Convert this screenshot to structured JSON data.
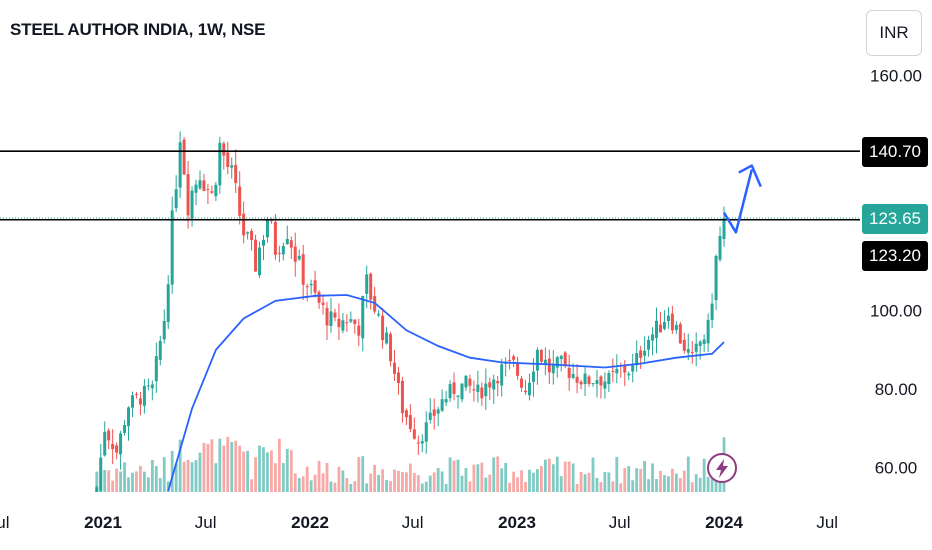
{
  "header": {
    "title": "STEEL AUTHOR INDIA, 1W, NSE",
    "currency": "INR"
  },
  "chart_data": {
    "type": "candlestick",
    "title": "STEEL AUTHOR INDIA, 1W, NSE",
    "currency": "INR",
    "y_ticks": [
      60,
      80,
      100,
      160
    ],
    "y_tick_labels": [
      "60.00",
      "80.00",
      "100.00",
      "160.00"
    ],
    "ylim": [
      54,
      163
    ],
    "x_tick_labels": [
      "Jul",
      "2021",
      "Jul",
      "2022",
      "Jul",
      "2023",
      "Jul",
      "2024",
      "Jul"
    ],
    "x_tick_dates": [
      "2020-07",
      "2021-01",
      "2021-07",
      "2022-01",
      "2022-07",
      "2023-01",
      "2023-07",
      "2024-01",
      "2024-07"
    ],
    "xlim": [
      "2020-07",
      "2024-08"
    ],
    "horizontal_lines": [
      {
        "value": 140.7,
        "label": "140.70",
        "color": "#000000"
      },
      {
        "value": 123.2,
        "label": "123.20",
        "color": "#000000"
      }
    ],
    "last_price": {
      "value": 123.65,
      "label": "123.65",
      "color": "#26a69a"
    },
    "close_path": [
      [
        "2020-12-21",
        55
      ],
      [
        "2021-01-04",
        70
      ],
      [
        "2021-01-25",
        64
      ],
      [
        "2021-02-15",
        76
      ],
      [
        "2021-03-08",
        78
      ],
      [
        "2021-03-29",
        80
      ],
      [
        "2021-04-19",
        98
      ],
      [
        "2021-05-03",
        122
      ],
      [
        "2021-05-17",
        146
      ],
      [
        "2021-05-31",
        128
      ],
      [
        "2021-06-21",
        136
      ],
      [
        "2021-07-12",
        129
      ],
      [
        "2021-07-26",
        142
      ],
      [
        "2021-08-16",
        134
      ],
      [
        "2021-09-06",
        120
      ],
      [
        "2021-09-27",
        112
      ],
      [
        "2021-10-18",
        124
      ],
      [
        "2021-11-01",
        116
      ],
      [
        "2021-11-22",
        121
      ],
      [
        "2021-12-13",
        111
      ],
      [
        "2022-01-03",
        105
      ],
      [
        "2022-01-24",
        100
      ],
      [
        "2022-02-14",
        96
      ],
      [
        "2022-03-07",
        98
      ],
      [
        "2022-03-28",
        96
      ],
      [
        "2022-04-11",
        107
      ],
      [
        "2022-05-02",
        98
      ],
      [
        "2022-05-23",
        89
      ],
      [
        "2022-06-13",
        75
      ],
      [
        "2022-06-27",
        71
      ],
      [
        "2022-07-11",
        67
      ],
      [
        "2022-08-01",
        72
      ],
      [
        "2022-08-22",
        77
      ],
      [
        "2022-09-12",
        80
      ],
      [
        "2022-10-03",
        81
      ],
      [
        "2022-10-24",
        79
      ],
      [
        "2022-11-14",
        82
      ],
      [
        "2022-12-05",
        85
      ],
      [
        "2022-12-26",
        86
      ],
      [
        "2023-01-16",
        80
      ],
      [
        "2023-02-06",
        90
      ],
      [
        "2023-02-27",
        85
      ],
      [
        "2023-03-20",
        86
      ],
      [
        "2023-04-10",
        84
      ],
      [
        "2023-05-01",
        82
      ],
      [
        "2023-05-22",
        83
      ],
      [
        "2023-06-12",
        82
      ],
      [
        "2023-07-03",
        85
      ],
      [
        "2023-07-24",
        85
      ],
      [
        "2023-08-14",
        92
      ],
      [
        "2023-09-04",
        95
      ],
      [
        "2023-09-25",
        100
      ],
      [
        "2023-10-16",
        93
      ],
      [
        "2023-11-06",
        87
      ],
      [
        "2023-11-20",
        92
      ],
      [
        "2023-12-04",
        95
      ],
      [
        "2023-12-18",
        113
      ],
      [
        "2024-01-01",
        123.65
      ]
    ],
    "moving_average": [
      [
        "2021-04-26",
        54
      ],
      [
        "2021-06-07",
        75
      ],
      [
        "2021-07-19",
        90
      ],
      [
        "2021-09-06",
        98
      ],
      [
        "2021-11-01",
        102.5
      ],
      [
        "2022-01-10",
        103.8
      ],
      [
        "2022-03-07",
        104
      ],
      [
        "2022-04-25",
        102
      ],
      [
        "2022-06-20",
        95
      ],
      [
        "2022-08-15",
        91
      ],
      [
        "2022-10-10",
        88
      ],
      [
        "2022-12-05",
        86.8
      ],
      [
        "2023-02-27",
        86.3
      ],
      [
        "2023-06-05",
        85.5
      ],
      [
        "2023-08-07",
        86.5
      ],
      [
        "2023-10-09",
        88
      ],
      [
        "2023-12-11",
        89
      ],
      [
        "2024-01-01",
        92
      ]
    ],
    "projection_arrow": [
      [
        "2024-01-01",
        125
      ],
      [
        "2024-01-22",
        120
      ],
      [
        "2024-02-19",
        136
      ]
    ],
    "volume_bars_color_up": "#80cbc4",
    "volume_bars_color_down": "#f7a9a7",
    "candle_up_color": "#26a69a",
    "candle_down_color": "#ef5350",
    "ma_color": "#2962ff",
    "arrow_color": "#2962ff",
    "grid": false
  }
}
